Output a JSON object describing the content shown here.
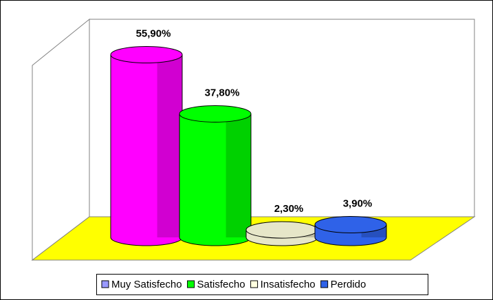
{
  "chart_data": {
    "type": "cylinder-bar",
    "categories": [
      "Muy Satisfecho",
      "Satisfecho",
      "Insatisfecho",
      "Perdido"
    ],
    "values": [
      55.9,
      37.8,
      2.3,
      3.9
    ],
    "value_labels": [
      "55,90%",
      "37,80%",
      "2,30%",
      "3,90%"
    ],
    "colors": [
      "#ff00ff",
      "#00ff00",
      "#e6e6c8",
      "#2f62e8"
    ],
    "legend_colors": [
      "#9999ff",
      "#00ff00",
      "#ffffe0",
      "#2f62e8"
    ],
    "floor_color": "#ffff00",
    "legend": "bottom"
  }
}
